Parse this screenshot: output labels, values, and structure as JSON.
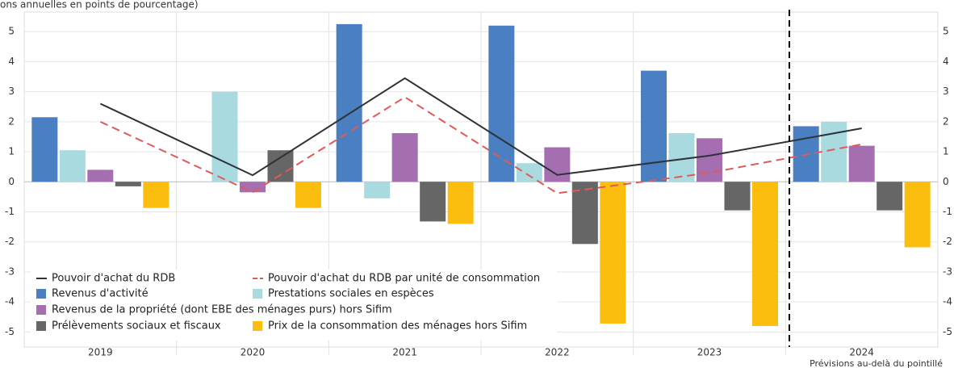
{
  "chart_data": {
    "type": "bar",
    "title": "ons annuelles en points de pourcentage)",
    "note": "Prévisions au-delà du pointillé",
    "categories": [
      "2019",
      "2020",
      "2021",
      "2022",
      "2023",
      "2024"
    ],
    "ylim": [
      -5.5,
      5.65
    ],
    "yticks": [
      -5,
      -4,
      -3,
      -2,
      -1,
      0,
      1,
      2,
      3,
      4,
      5
    ],
    "grid": true,
    "series": [
      {
        "name": "Pouvoir d'achat du RDB",
        "type": "line",
        "dash": false,
        "color": "#2d3338",
        "values": [
          2.6,
          0.22,
          3.45,
          0.23,
          0.87,
          1.78
        ]
      },
      {
        "name": "Pouvoir d'achat du RDB par unité de consommation",
        "type": "line",
        "dash": true,
        "color": "#e05a5a",
        "values": [
          2.0,
          -0.35,
          2.82,
          -0.38,
          0.3,
          1.25
        ]
      },
      {
        "name": "Revenus d'activité",
        "type": "bar",
        "color": "#4a7fc1",
        "values": [
          2.15,
          0,
          5.25,
          5.2,
          3.7,
          1.85
        ]
      },
      {
        "name": "Prestations sociales en espèces",
        "type": "bar",
        "color": "#a8dadf",
        "values": [
          1.05,
          3.0,
          -0.55,
          0.62,
          1.62,
          2.0
        ]
      },
      {
        "name": "Revenus de la propriété (dont EBE des ménages purs) hors Sifim",
        "type": "bar",
        "color": "#a56eb0",
        "values": [
          0.4,
          -0.35,
          1.62,
          1.15,
          1.45,
          1.2
        ]
      },
      {
        "name": "Prélèvements sociaux et fiscaux",
        "type": "bar",
        "color": "#666666",
        "values": [
          -0.15,
          1.05,
          -1.32,
          -2.07,
          -0.95,
          -0.95
        ]
      },
      {
        "name": "Prix de la consommation des ménages hors Sifim",
        "type": "bar",
        "color": "#fbbe0f",
        "values": [
          -0.87,
          -0.87,
          -1.4,
          -4.72,
          -4.8,
          -2.18
        ]
      }
    ]
  }
}
